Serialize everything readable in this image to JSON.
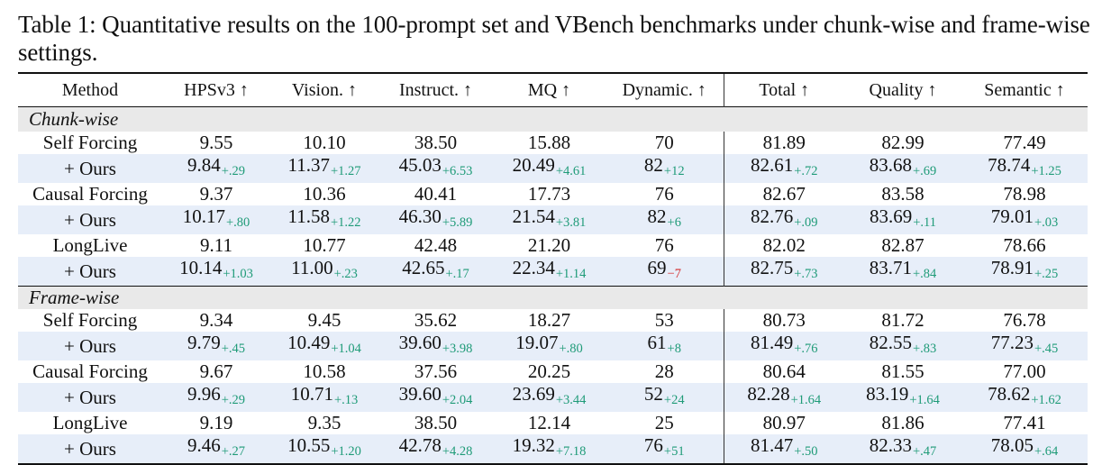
{
  "caption": "Table 1: Quantitative results on the 100-prompt set and VBench benchmarks under chunk-wise and frame-wise settings.",
  "headers": {
    "method": "Method",
    "hps": "HPSv3 ↑",
    "vision": "Vision. ↑",
    "instruct": "Instruct. ↑",
    "mq": "MQ ↑",
    "dynamic": "Dynamic. ↑",
    "total": "Total ↑",
    "quality": "Quality ↑",
    "semantic": "Semantic ↑"
  },
  "groups": {
    "chunk": {
      "label": "Chunk-wise",
      "rows": [
        {
          "method": "Self Forcing",
          "v": [
            "9.55",
            "10.10",
            "38.50",
            "15.88",
            "70",
            "81.89",
            "82.99",
            "77.49"
          ]
        },
        {
          "method": "+ Ours",
          "v": [
            "9.84",
            "11.37",
            "45.03",
            "20.49",
            "82",
            "82.61",
            "83.68",
            "78.74"
          ],
          "d": [
            "+.29",
            "+1.27",
            "+6.53",
            "+4.61",
            "+12",
            "+.72",
            "+.69",
            "+1.25"
          ]
        },
        {
          "method": "Causal Forcing",
          "v": [
            "9.37",
            "10.36",
            "40.41",
            "17.73",
            "76",
            "82.67",
            "83.58",
            "78.98"
          ]
        },
        {
          "method": "+ Ours",
          "v": [
            "10.17",
            "11.58",
            "46.30",
            "21.54",
            "82",
            "82.76",
            "83.69",
            "79.01"
          ],
          "d": [
            "+.80",
            "+1.22",
            "+5.89",
            "+3.81",
            "+6",
            "+.09",
            "+.11",
            "+.03"
          ]
        },
        {
          "method": "LongLive",
          "v": [
            "9.11",
            "10.77",
            "42.48",
            "21.20",
            "76",
            "82.02",
            "82.87",
            "78.66"
          ]
        },
        {
          "method": "+ Ours",
          "v": [
            "10.14",
            "11.00",
            "42.65",
            "22.34",
            "69",
            "82.75",
            "83.71",
            "78.91"
          ],
          "d": [
            "+1.03",
            "+.23",
            "+.17",
            "+1.14",
            "−7",
            "+.73",
            "+.84",
            "+.25"
          ]
        }
      ]
    },
    "frame": {
      "label": "Frame-wise",
      "rows": [
        {
          "method": "Self Forcing",
          "v": [
            "9.34",
            "9.45",
            "35.62",
            "18.27",
            "53",
            "80.73",
            "81.72",
            "76.78"
          ]
        },
        {
          "method": "+ Ours",
          "v": [
            "9.79",
            "10.49",
            "39.60",
            "19.07",
            "61",
            "81.49",
            "82.55",
            "77.23"
          ],
          "d": [
            "+.45",
            "+1.04",
            "+3.98",
            "+.80",
            "+8",
            "+.76",
            "+.83",
            "+.45"
          ]
        },
        {
          "method": "Causal Forcing",
          "v": [
            "9.67",
            "10.58",
            "37.56",
            "20.25",
            "28",
            "80.64",
            "81.55",
            "77.00"
          ]
        },
        {
          "method": "+ Ours",
          "v": [
            "9.96",
            "10.71",
            "39.60",
            "23.69",
            "52",
            "82.28",
            "83.19",
            "78.62"
          ],
          "d": [
            "+.29",
            "+.13",
            "+2.04",
            "+3.44",
            "+24",
            "+1.64",
            "+1.64",
            "+1.62"
          ]
        },
        {
          "method": "LongLive",
          "v": [
            "9.19",
            "9.35",
            "38.50",
            "12.14",
            "25",
            "80.97",
            "81.86",
            "77.41"
          ]
        },
        {
          "method": "+ Ours",
          "v": [
            "9.46",
            "10.55",
            "42.78",
            "19.32",
            "76",
            "81.47",
            "82.33",
            "78.05"
          ],
          "d": [
            "+.27",
            "+1.20",
            "+4.28",
            "+7.18",
            "+51",
            "+.50",
            "+.47",
            "+.64"
          ]
        }
      ]
    }
  },
  "colors": {
    "positive": "#1f9b78",
    "negative": "#d42b2b",
    "ours_bg": "#e7eef9",
    "group_bg": "#e9e9e9"
  }
}
